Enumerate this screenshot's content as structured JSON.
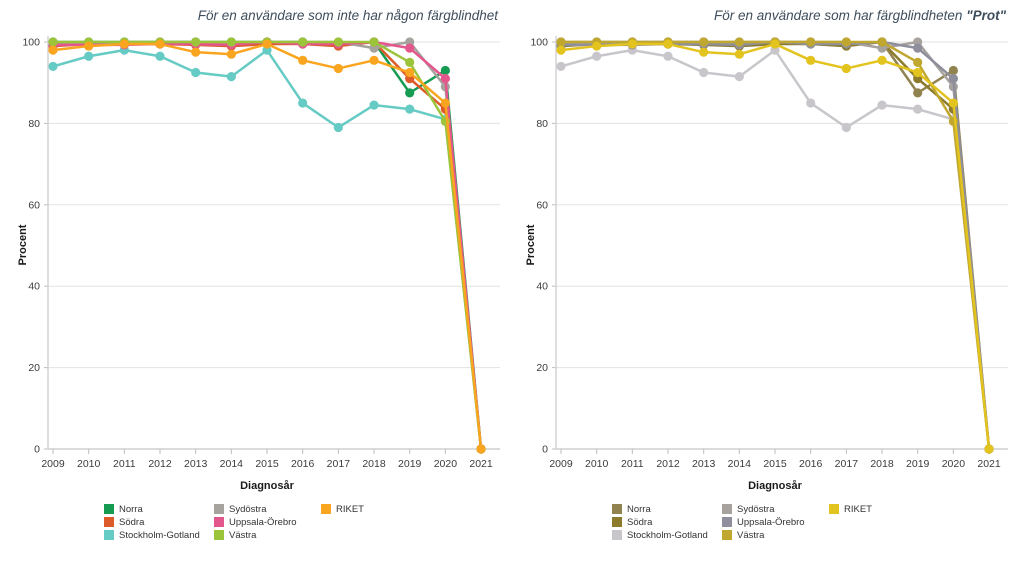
{
  "page": {
    "background": "#ffffff",
    "grid_color": "#e3e3e3",
    "axis_color": "#cccccc",
    "tick_text_color": "#3c3c3c",
    "title_color": "#3f4e5c"
  },
  "chart_data": [
    {
      "type": "line",
      "title_parts": [
        {
          "text": "För en användare som inte har någon färgblindhet",
          "bold": false
        }
      ],
      "xlabel": "Diagnosår",
      "ylabel": "Procent",
      "ylim": [
        0,
        100
      ],
      "y_ticks": [
        0,
        20,
        40,
        60,
        80,
        100
      ],
      "grid": true,
      "legend_position": "bottom",
      "legend_columns": [
        [
          0,
          1,
          2
        ],
        [
          3,
          4,
          5
        ],
        [
          6
        ]
      ],
      "categories": [
        "2009",
        "2010",
        "2011",
        "2012",
        "2013",
        "2014",
        "2015",
        "2016",
        "2017",
        "2018",
        "2019",
        "2020",
        "2021"
      ],
      "series": [
        {
          "name": "Norra",
          "color": "#169b52",
          "values": [
            100,
            100,
            100,
            100,
            100,
            100,
            100,
            100,
            99.5,
            100,
            87.5,
            93,
            0
          ]
        },
        {
          "name": "Södra",
          "color": "#dd5b2b",
          "values": [
            99,
            99.5,
            99.5,
            99.5,
            99.3,
            99,
            99.5,
            99.5,
            99,
            100,
            91,
            83.5,
            0
          ]
        },
        {
          "name": "Stockholm-Gotland",
          "color": "#66cbc4",
          "values": [
            94,
            96.5,
            98,
            96.5,
            92.5,
            91.5,
            98,
            85,
            79,
            84.5,
            83.5,
            81,
            0
          ]
        },
        {
          "name": "Sydöstra",
          "color": "#a6a29e",
          "values": [
            99.5,
            99.5,
            100,
            100,
            100,
            99.5,
            100,
            100,
            100,
            98.5,
            100,
            89,
            0
          ]
        },
        {
          "name": "Uppsala-Örebro",
          "color": "#e4578c",
          "values": [
            99.3,
            99.3,
            99.3,
            99.5,
            99.5,
            99.3,
            100,
            99.5,
            99.5,
            100,
            98.5,
            91,
            0
          ]
        },
        {
          "name": "Västra",
          "color": "#9cc43b",
          "values": [
            100,
            100,
            100,
            100,
            100,
            100,
            100,
            100,
            100,
            100,
            95,
            80.5,
            0
          ]
        },
        {
          "name": "RIKET",
          "color": "#f9a51f",
          "values": [
            98,
            99,
            99.5,
            99.5,
            97.5,
            97,
            99.5,
            95.5,
            93.5,
            95.5,
            92.5,
            85,
            0
          ]
        }
      ]
    },
    {
      "type": "line",
      "title_parts": [
        {
          "text": "För en användare som har färgblindheten ",
          "bold": false
        },
        {
          "text": "\"Prot\"",
          "bold": true
        }
      ],
      "xlabel": "Diagnosår",
      "ylabel": "Procent",
      "ylim": [
        0,
        100
      ],
      "y_ticks": [
        0,
        20,
        40,
        60,
        80,
        100
      ],
      "grid": true,
      "legend_position": "bottom",
      "legend_columns": [
        [
          0,
          1,
          2
        ],
        [
          3,
          4,
          5
        ],
        [
          6
        ]
      ],
      "categories": [
        "2009",
        "2010",
        "2011",
        "2012",
        "2013",
        "2014",
        "2015",
        "2016",
        "2017",
        "2018",
        "2019",
        "2020",
        "2021"
      ],
      "series": [
        {
          "name": "Norra",
          "color": "#91834f",
          "values": [
            100,
            100,
            100,
            100,
            100,
            100,
            100,
            100,
            99.5,
            100,
            87.5,
            93,
            0
          ]
        },
        {
          "name": "Södra",
          "color": "#8c7b2d",
          "values": [
            99,
            99.5,
            99.5,
            99.5,
            99.3,
            99,
            99.5,
            99.5,
            99,
            100,
            91,
            83.5,
            0
          ]
        },
        {
          "name": "Stockholm-Gotland",
          "color": "#c8c6ca",
          "values": [
            94,
            96.5,
            98,
            96.5,
            92.5,
            91.5,
            98,
            85,
            79,
            84.5,
            83.5,
            81,
            0
          ]
        },
        {
          "name": "Sydöstra",
          "color": "#a7a29e",
          "values": [
            99.5,
            99.5,
            100,
            100,
            100,
            99.5,
            100,
            100,
            100,
            98.5,
            100,
            89,
            0
          ]
        },
        {
          "name": "Uppsala-Örebro",
          "color": "#8e8e9d",
          "values": [
            99.3,
            99.3,
            99.3,
            99.5,
            99.5,
            99.3,
            100,
            99.5,
            99.5,
            100,
            98.5,
            91,
            0
          ]
        },
        {
          "name": "Västra",
          "color": "#bfa730",
          "values": [
            100,
            100,
            100,
            100,
            100,
            100,
            100,
            100,
            100,
            100,
            95,
            80.5,
            0
          ]
        },
        {
          "name": "RIKET",
          "color": "#e3c31e",
          "values": [
            98,
            99,
            99.5,
            99.5,
            97.5,
            97,
            99.5,
            95.5,
            93.5,
            95.5,
            92.5,
            85,
            0
          ]
        }
      ]
    }
  ]
}
